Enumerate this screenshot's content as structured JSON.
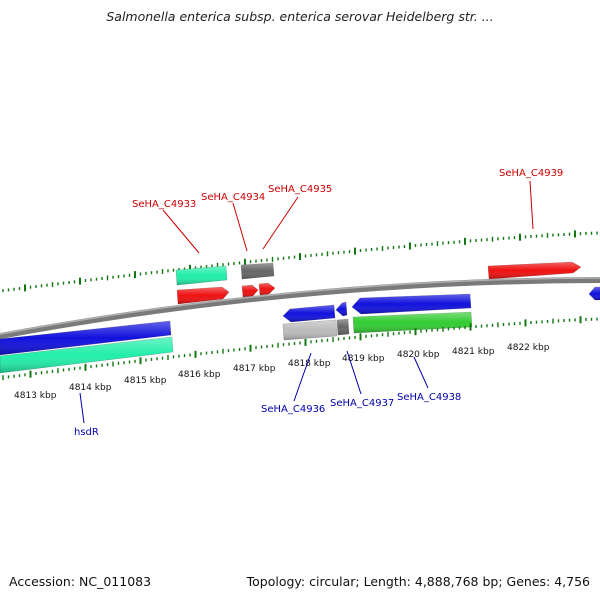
{
  "title": "Salmonella enterica subsp. enterica serovar Heidelberg str. ...",
  "colors": {
    "forward_label": "#cc0000",
    "reverse_label": "#0000aa",
    "ticks": "#117711",
    "backbone": "#808080",
    "red_gene": "#ee1111",
    "blue_gene": "#1111dd",
    "teal_gene": "#22eeaa",
    "green_gene": "#33cc33",
    "gray_gene": "#666666",
    "silver_gene": "#bbbbbb"
  },
  "scale_labels": [
    "4813 kbp",
    "4814 kbp",
    "4815 kbp",
    "4816 kbp",
    "4817 kbp",
    "4818 kbp",
    "4819 kbp",
    "4820 kbp",
    "4821 kbp",
    "4822 kbp"
  ],
  "genes": {
    "forward": [
      {
        "name": "SeHA_C4933"
      },
      {
        "name": "SeHA_C4934"
      },
      {
        "name": "SeHA_C4935"
      },
      {
        "name": "SeHA_C4939"
      }
    ],
    "reverse": [
      {
        "name": "hsdR"
      },
      {
        "name": "SeHA_C4936"
      },
      {
        "name": "SeHA_C4937"
      },
      {
        "name": "SeHA_C4938"
      }
    ]
  },
  "footer": {
    "accession": "Accession: NC_011083",
    "summary": "Topology: circular; Length: 4,888,768 bp; Genes: 4,756"
  }
}
